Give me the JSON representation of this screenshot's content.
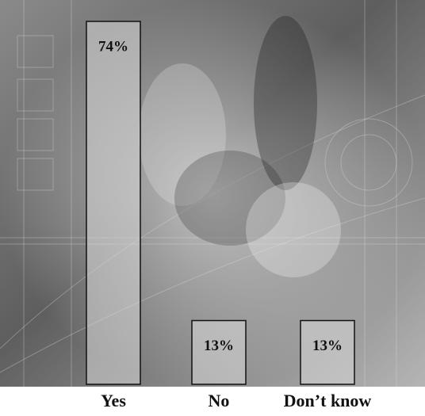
{
  "chart_data": {
    "type": "bar",
    "categories": [
      "Yes",
      "No",
      "Don’t know"
    ],
    "values": [
      74,
      13,
      13
    ],
    "value_labels": [
      "74%",
      "13%",
      "13%"
    ],
    "color": "#d9d9d9"
  }
}
